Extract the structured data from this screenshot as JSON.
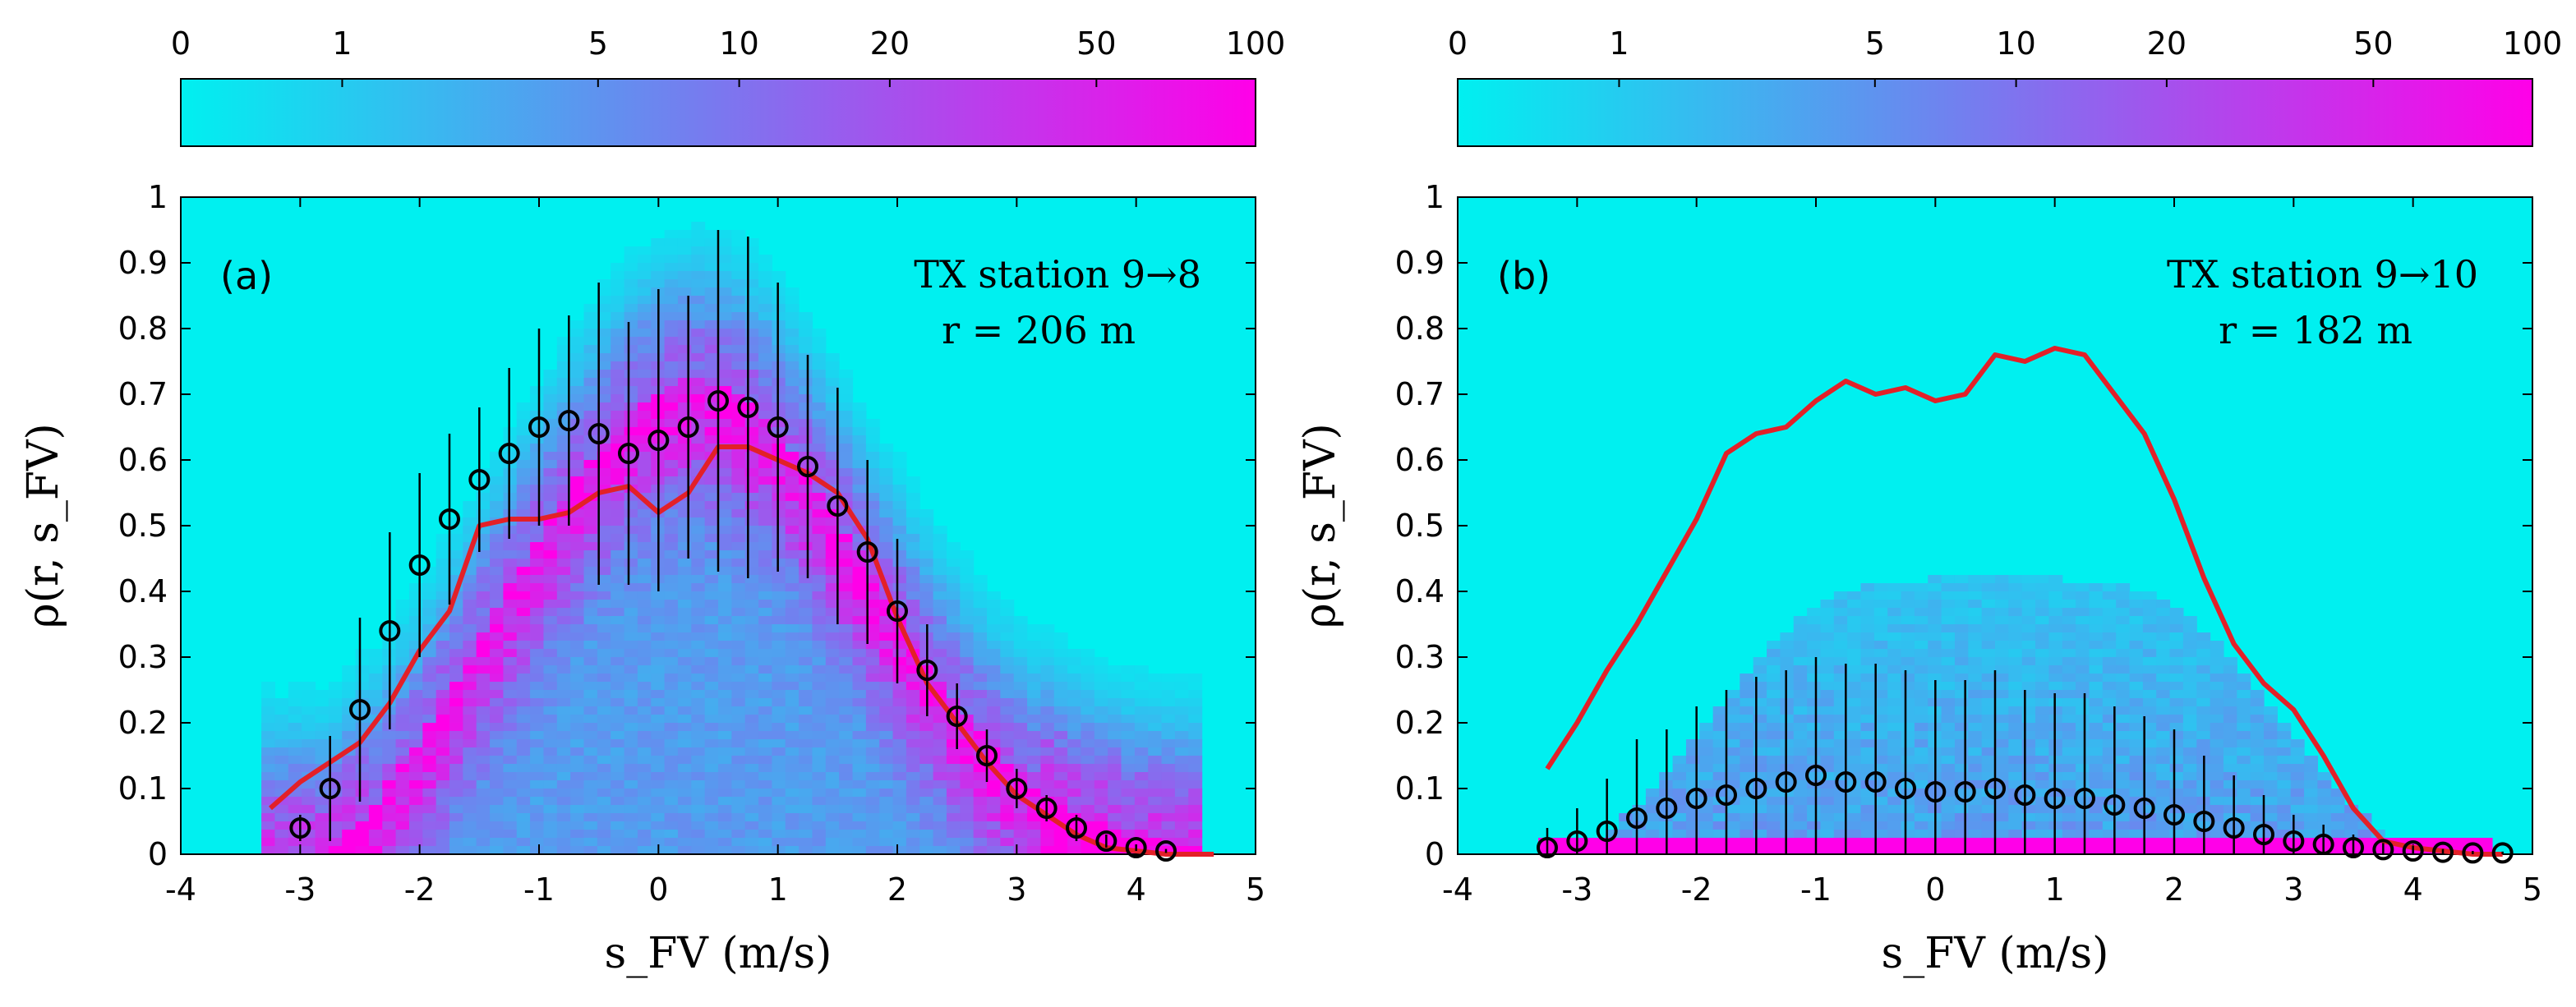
{
  "chart_data": [
    {
      "type": "scatter",
      "panel_label": "(a)",
      "annotation_line1": "TX station 9→8",
      "annotation_line2": "r = 206 m",
      "xlabel": "s_FV (m/s)",
      "ylabel": "ρ(r, s_FV)",
      "xlim": [
        -4,
        5
      ],
      "ylim": [
        0,
        1
      ],
      "xticks": [
        "-4",
        "-3",
        "-2",
        "-1",
        "0",
        "1",
        "2",
        "3",
        "4",
        "5"
      ],
      "yticks": [
        "0",
        "0.1",
        "0.2",
        "0.3",
        "0.4",
        "0.5",
        "0.6",
        "0.7",
        "0.8",
        "0.9",
        "1"
      ],
      "colorbar": {
        "ticks": [
          "0",
          "1",
          "5",
          "10",
          "20",
          "50",
          "100"
        ],
        "scale": "log",
        "colors": [
          "#00f0f0",
          "#7a78ef",
          "#ff00e8"
        ]
      },
      "density_shape": "arch",
      "series": [
        {
          "kind": "line",
          "color": "#e32028",
          "x": [
            -3.25,
            -3.0,
            -2.75,
            -2.5,
            -2.25,
            -2.0,
            -1.75,
            -1.5,
            -1.25,
            -1.0,
            -0.75,
            -0.5,
            -0.25,
            0.0,
            0.25,
            0.5,
            0.75,
            1.0,
            1.25,
            1.5,
            1.75,
            2.0,
            2.25,
            2.5,
            2.75,
            3.0,
            3.25,
            3.5,
            3.75,
            4.0,
            4.25,
            4.5,
            4.65
          ],
          "y": [
            0.07,
            0.11,
            0.14,
            0.17,
            0.23,
            0.31,
            0.37,
            0.5,
            0.51,
            0.51,
            0.52,
            0.55,
            0.56,
            0.52,
            0.55,
            0.62,
            0.62,
            0.6,
            0.58,
            0.55,
            0.48,
            0.36,
            0.26,
            0.2,
            0.14,
            0.09,
            0.06,
            0.03,
            0.01,
            0.005,
            0.0,
            0.0,
            0.0
          ]
        },
        {
          "kind": "errorbar",
          "marker": "circle",
          "color": "#000000",
          "x": [
            -3.0,
            -2.75,
            -2.5,
            -2.25,
            -2.0,
            -1.75,
            -1.5,
            -1.25,
            -1.0,
            -0.75,
            -0.5,
            -0.25,
            0.0,
            0.25,
            0.5,
            0.75,
            1.0,
            1.25,
            1.5,
            1.75,
            2.0,
            2.25,
            2.5,
            2.75,
            3.0,
            3.25,
            3.5,
            3.75,
            4.0,
            4.25
          ],
          "y": [
            0.04,
            0.1,
            0.22,
            0.34,
            0.44,
            0.51,
            0.57,
            0.61,
            0.65,
            0.66,
            0.64,
            0.61,
            0.63,
            0.65,
            0.69,
            0.68,
            0.65,
            0.59,
            0.53,
            0.46,
            0.37,
            0.28,
            0.21,
            0.15,
            0.1,
            0.07,
            0.04,
            0.02,
            0.01,
            0.005
          ],
          "err": [
            0.02,
            0.08,
            0.14,
            0.15,
            0.14,
            0.13,
            0.11,
            0.13,
            0.15,
            0.16,
            0.23,
            0.2,
            0.23,
            0.2,
            0.26,
            0.26,
            0.22,
            0.17,
            0.18,
            0.14,
            0.11,
            0.07,
            0.05,
            0.04,
            0.03,
            0.02,
            0.02,
            0.01,
            0.005,
            0.003
          ]
        }
      ]
    },
    {
      "type": "scatter",
      "panel_label": "(b)",
      "annotation_line1": "TX station 9→10",
      "annotation_line2": "r = 182 m",
      "xlabel": "s_FV (m/s)",
      "ylabel": "ρ(r, s_FV)",
      "xlim": [
        -4,
        5
      ],
      "ylim": [
        0,
        1
      ],
      "xticks": [
        "-4",
        "-3",
        "-2",
        "-1",
        "0",
        "1",
        "2",
        "3",
        "4",
        "5"
      ],
      "yticks": [
        "0",
        "0.1",
        "0.2",
        "0.3",
        "0.4",
        "0.5",
        "0.6",
        "0.7",
        "0.8",
        "0.9",
        "1"
      ],
      "colorbar": {
        "ticks": [
          "0",
          "1",
          "5",
          "10",
          "20",
          "50",
          "100"
        ],
        "scale": "log",
        "colors": [
          "#00f0f0",
          "#7a78ef",
          "#ff00e8"
        ]
      },
      "density_shape": "low_band",
      "series": [
        {
          "kind": "line",
          "color": "#e32028",
          "x": [
            -3.25,
            -3.0,
            -2.75,
            -2.5,
            -2.25,
            -2.0,
            -1.75,
            -1.5,
            -1.25,
            -1.0,
            -0.75,
            -0.5,
            -0.25,
            0.0,
            0.25,
            0.5,
            0.75,
            1.0,
            1.25,
            1.5,
            1.75,
            2.0,
            2.25,
            2.5,
            2.75,
            3.0,
            3.25,
            3.5,
            3.75,
            4.0,
            4.25,
            4.5,
            4.75
          ],
          "y": [
            0.13,
            0.2,
            0.28,
            0.35,
            0.43,
            0.51,
            0.61,
            0.64,
            0.65,
            0.69,
            0.72,
            0.7,
            0.71,
            0.69,
            0.7,
            0.76,
            0.75,
            0.77,
            0.76,
            0.7,
            0.64,
            0.54,
            0.42,
            0.32,
            0.26,
            0.22,
            0.15,
            0.07,
            0.02,
            0.01,
            0.005,
            0.0,
            0.0
          ]
        },
        {
          "kind": "errorbar",
          "marker": "circle",
          "color": "#000000",
          "x": [
            -3.25,
            -3.0,
            -2.75,
            -2.5,
            -2.25,
            -2.0,
            -1.75,
            -1.5,
            -1.25,
            -1.0,
            -0.75,
            -0.5,
            -0.25,
            0.0,
            0.25,
            0.5,
            0.75,
            1.0,
            1.25,
            1.5,
            1.75,
            2.0,
            2.25,
            2.5,
            2.75,
            3.0,
            3.25,
            3.5,
            3.75,
            4.0,
            4.25,
            4.5,
            4.75
          ],
          "y": [
            0.01,
            0.02,
            0.035,
            0.055,
            0.07,
            0.085,
            0.09,
            0.1,
            0.11,
            0.12,
            0.11,
            0.11,
            0.1,
            0.095,
            0.095,
            0.1,
            0.09,
            0.085,
            0.085,
            0.075,
            0.07,
            0.06,
            0.05,
            0.04,
            0.03,
            0.02,
            0.015,
            0.01,
            0.007,
            0.005,
            0.003,
            0.002,
            0.002
          ],
          "err": [
            0.03,
            0.05,
            0.08,
            0.12,
            0.12,
            0.14,
            0.16,
            0.17,
            0.17,
            0.18,
            0.18,
            0.18,
            0.18,
            0.17,
            0.17,
            0.18,
            0.16,
            0.16,
            0.16,
            0.15,
            0.14,
            0.13,
            0.1,
            0.08,
            0.06,
            0.04,
            0.03,
            0.02,
            0.01,
            0.008,
            0.005,
            0.003,
            0.002
          ]
        }
      ]
    }
  ]
}
